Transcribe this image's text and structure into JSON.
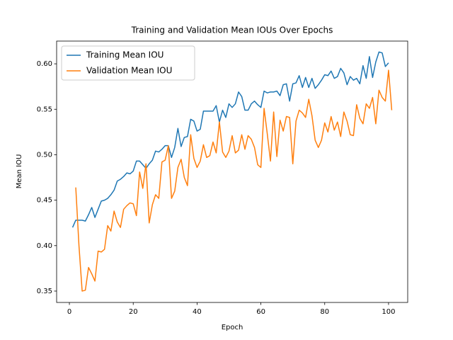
{
  "chart_data": {
    "type": "line",
    "title": "Training and Validation Mean IOUs Over Epochs",
    "x_label": "Epoch",
    "y_label": "Mean IOU",
    "x": [
      1,
      2,
      3,
      4,
      5,
      6,
      7,
      8,
      9,
      10,
      11,
      12,
      13,
      14,
      15,
      16,
      17,
      18,
      19,
      20,
      21,
      22,
      23,
      24,
      25,
      26,
      27,
      28,
      29,
      30,
      31,
      32,
      33,
      34,
      35,
      36,
      37,
      38,
      39,
      40,
      41,
      42,
      43,
      44,
      45,
      46,
      47,
      48,
      49,
      50,
      51,
      52,
      53,
      54,
      55,
      56,
      57,
      58,
      59,
      60,
      61,
      62,
      63,
      64,
      65,
      66,
      67,
      68,
      69,
      70,
      71,
      72,
      73,
      74,
      75,
      76,
      77,
      78,
      79,
      80,
      81,
      82,
      83,
      84,
      85,
      86,
      87,
      88,
      89,
      90,
      91,
      92,
      93,
      94,
      95,
      96,
      97,
      98,
      99,
      100,
      101
    ],
    "series": [
      {
        "name": "Training Mean IOU",
        "color": "#1f77b4",
        "values": [
          0.42,
          0.428,
          0.428,
          0.428,
          0.427,
          0.434,
          0.442,
          0.431,
          0.44,
          0.449,
          0.45,
          0.452,
          0.456,
          0.461,
          0.471,
          0.473,
          0.476,
          0.48,
          0.479,
          0.482,
          0.493,
          0.493,
          0.489,
          0.485,
          0.49,
          0.494,
          0.504,
          0.503,
          0.506,
          0.51,
          0.51,
          0.497,
          0.508,
          0.529,
          0.509,
          0.519,
          0.52,
          0.539,
          0.537,
          0.526,
          0.528,
          0.548,
          0.548,
          0.548,
          0.548,
          0.554,
          0.536,
          0.549,
          0.541,
          0.556,
          0.552,
          0.556,
          0.569,
          0.564,
          0.549,
          0.549,
          0.556,
          0.559,
          0.555,
          0.552,
          0.57,
          0.568,
          0.569,
          0.569,
          0.57,
          0.565,
          0.577,
          0.578,
          0.559,
          0.578,
          0.579,
          0.587,
          0.574,
          0.585,
          0.574,
          0.584,
          0.573,
          0.577,
          0.582,
          0.588,
          0.587,
          0.592,
          0.584,
          0.586,
          0.595,
          0.59,
          0.577,
          0.586,
          0.582,
          0.584,
          0.578,
          0.598,
          0.584,
          0.608,
          0.585,
          0.602,
          0.613,
          0.612,
          0.597,
          0.601,
          null
        ]
      },
      {
        "name": "Validation Mean IOU",
        "color": "#ff7f0e",
        "values": [
          null,
          0.464,
          0.4,
          0.35,
          0.351,
          0.376,
          0.369,
          0.361,
          0.394,
          0.393,
          0.396,
          0.422,
          0.416,
          0.438,
          0.426,
          0.42,
          0.44,
          0.444,
          0.447,
          0.446,
          0.433,
          0.481,
          0.463,
          0.49,
          0.425,
          0.445,
          0.456,
          0.452,
          0.492,
          0.494,
          0.51,
          0.452,
          0.46,
          0.486,
          0.495,
          0.475,
          0.466,
          0.522,
          0.496,
          0.486,
          0.493,
          0.511,
          0.497,
          0.499,
          0.514,
          0.502,
          0.536,
          0.503,
          0.497,
          0.504,
          0.521,
          0.502,
          0.505,
          0.522,
          0.506,
          0.521,
          0.517,
          0.508,
          0.489,
          0.486,
          0.551,
          0.523,
          0.493,
          0.547,
          0.498,
          0.538,
          0.526,
          0.542,
          0.541,
          0.49,
          0.537,
          0.549,
          0.546,
          0.541,
          0.561,
          0.543,
          0.516,
          0.508,
          0.516,
          0.535,
          0.525,
          0.542,
          0.527,
          0.536,
          0.52,
          0.547,
          0.537,
          0.522,
          0.521,
          0.555,
          0.54,
          0.534,
          0.556,
          0.551,
          0.563,
          0.534,
          0.571,
          0.563,
          0.559,
          0.593,
          0.549
        ]
      }
    ],
    "xlim": [
      -4,
      106
    ],
    "xticks": [
      0,
      20,
      40,
      60,
      80,
      100
    ],
    "ylim": [
      0.3375,
      0.625
    ],
    "yticks": [
      {
        "value": 0.35,
        "label": "0.35"
      },
      {
        "value": 0.4,
        "label": "0.40"
      },
      {
        "value": 0.45,
        "label": "0.45"
      },
      {
        "value": 0.5,
        "label": "0.50"
      },
      {
        "value": 0.55,
        "label": "0.55"
      },
      {
        "value": 0.6,
        "label": "0.60"
      }
    ],
    "grid": false,
    "legend": "upper-left"
  }
}
